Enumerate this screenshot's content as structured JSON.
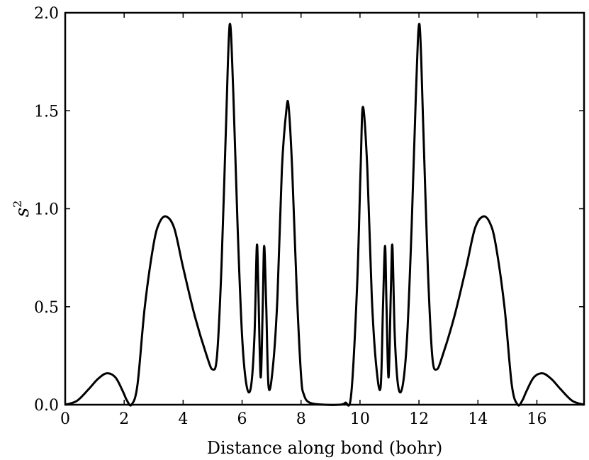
{
  "chart_data": {
    "type": "line",
    "xlabel": "Distance along bond (bohr)",
    "ylabel": {
      "base": "s",
      "sup": "2"
    },
    "xlim": [
      0,
      17.6
    ],
    "ylim": [
      0,
      2.0
    ],
    "xticks": [
      0,
      2,
      4,
      6,
      8,
      10,
      12,
      14,
      16
    ],
    "xtick_labels": [
      "0",
      "2",
      "4",
      "6",
      "8",
      "10",
      "12",
      "14",
      "16"
    ],
    "yticks": [
      0,
      0.5,
      1.0,
      1.5,
      2.0
    ],
    "ytick_labels": [
      "0.0",
      "0.5",
      "1.0",
      "1.5",
      "2.0"
    ],
    "grid": false,
    "line_color": "#000000",
    "series": [
      {
        "x": [
          0,
          0.4,
          0.8,
          1.1,
          1.4,
          1.7,
          1.95,
          2.1,
          2.25,
          2.45,
          2.7,
          3.0,
          3.2,
          3.43,
          3.7,
          4.0,
          4.4,
          4.8,
          5.0,
          5.15,
          5.3,
          5.45,
          5.58,
          5.7,
          5.85,
          6.0,
          6.15,
          6.3,
          6.42,
          6.5,
          6.55,
          6.63,
          6.7,
          6.75,
          6.82,
          6.9,
          7.05,
          7.2,
          7.35,
          7.5,
          7.58,
          7.7,
          7.85,
          8.0,
          8.1,
          8.3,
          8.8,
          9.3,
          9.5,
          9.7,
          9.9,
          10.02,
          10.1,
          10.25,
          10.4,
          10.55,
          10.7,
          10.78,
          10.85,
          10.9,
          10.97,
          11.05,
          11.1,
          11.18,
          11.3,
          11.45,
          11.6,
          11.75,
          11.9,
          12.02,
          12.15,
          12.3,
          12.45,
          12.6,
          12.8,
          13.2,
          13.6,
          13.9,
          14.17,
          14.4,
          14.6,
          14.9,
          15.15,
          15.35,
          15.5,
          15.65,
          15.9,
          16.2,
          16.5,
          16.8,
          17.2,
          17.6
        ],
        "y": [
          0.0,
          0.02,
          0.08,
          0.13,
          0.16,
          0.14,
          0.07,
          0.02,
          0.0,
          0.1,
          0.5,
          0.82,
          0.93,
          0.96,
          0.9,
          0.7,
          0.45,
          0.25,
          0.18,
          0.25,
          0.7,
          1.4,
          1.94,
          1.6,
          0.9,
          0.35,
          0.1,
          0.09,
          0.35,
          0.81,
          0.6,
          0.14,
          0.5,
          0.81,
          0.5,
          0.09,
          0.2,
          0.55,
          1.2,
          1.5,
          1.52,
          1.2,
          0.6,
          0.15,
          0.05,
          0.01,
          0.0,
          0.0,
          0.01,
          0.05,
          0.6,
          1.2,
          1.52,
          1.2,
          0.55,
          0.2,
          0.09,
          0.5,
          0.81,
          0.5,
          0.14,
          0.6,
          0.81,
          0.35,
          0.09,
          0.1,
          0.35,
          0.9,
          1.6,
          1.94,
          1.4,
          0.7,
          0.25,
          0.18,
          0.25,
          0.45,
          0.7,
          0.9,
          0.96,
          0.93,
          0.82,
          0.5,
          0.1,
          0.0,
          0.02,
          0.07,
          0.14,
          0.16,
          0.13,
          0.08,
          0.02,
          0.0
        ]
      }
    ]
  }
}
